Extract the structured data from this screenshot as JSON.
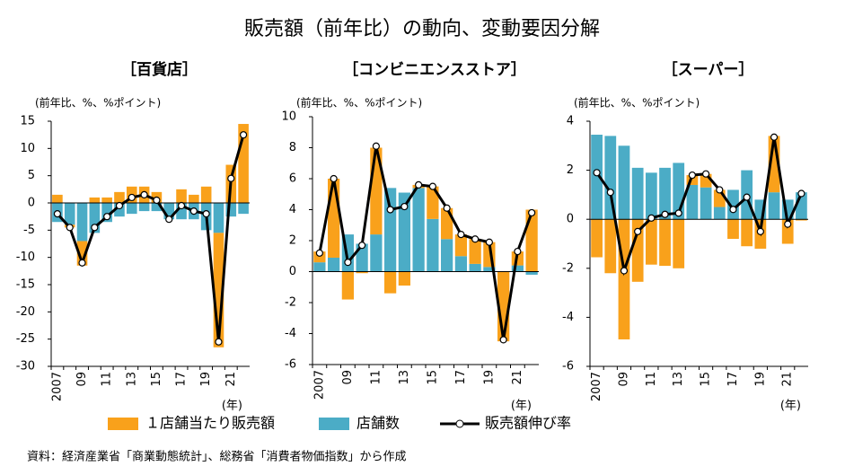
{
  "title": "販売額（前年比）の動向、変動要因分解",
  "source": "資料：経済産業省「商業動態統計」、総務省「消費者物価指数」から作成",
  "chart_data": [
    {
      "type": "combo",
      "title": "［百貨店］",
      "unit_label": "(前年比、%、%ポイント)",
      "x_unit": "(年)",
      "categories": [
        "2007",
        null,
        "09",
        null,
        "11",
        null,
        "13",
        null,
        "15",
        null,
        "17",
        null,
        "19",
        null,
        "21",
        null
      ],
      "ylim": [
        -30,
        15
      ],
      "yticks": [
        -30,
        -25,
        -20,
        -15,
        -10,
        -5,
        0,
        5,
        10,
        15
      ],
      "series": [
        {
          "name": "１店舗当たり販売額",
          "type": "bar",
          "color": "#f9a11b",
          "values": [
            1.5,
            -0.5,
            -4.5,
            1,
            1,
            2,
            3,
            3,
            2,
            0,
            2.5,
            1.5,
            3,
            -21,
            7,
            14.5
          ]
        },
        {
          "name": "店舗数",
          "type": "bar",
          "color": "#4bacc6",
          "values": [
            -3.5,
            -4,
            -7,
            -5.5,
            -3.5,
            -2.5,
            -2,
            -1.5,
            -1.5,
            -3,
            -3,
            -3,
            -5,
            -5.5,
            -2.5,
            -2
          ]
        },
        {
          "name": "販売額伸び率",
          "type": "line",
          "color": "#000000",
          "values": [
            -2,
            -4.5,
            -11,
            -4.5,
            -2.5,
            -0.5,
            1,
            1.5,
            0.5,
            -3,
            -0.5,
            -1.5,
            -2,
            -25.5,
            4.5,
            12.5
          ]
        }
      ]
    },
    {
      "type": "combo",
      "title": "［コンビニエンスストア］",
      "unit_label": "(前年比、%、%ポイント)",
      "x_unit": "(年)",
      "categories": [
        "2007",
        null,
        "09",
        null,
        "11",
        null,
        "13",
        null,
        "15",
        null,
        "17",
        null,
        "19",
        null,
        "21",
        null
      ],
      "ylim": [
        -6,
        10
      ],
      "yticks": [
        -6,
        -4,
        -2,
        0,
        2,
        4,
        6,
        8,
        10
      ],
      "series": [
        {
          "name": "１店舗当たり販売額",
          "type": "bar",
          "color": "#f9a11b",
          "values": [
            0.7,
            5.1,
            -1.8,
            -0.1,
            5.6,
            -1.4,
            -0.9,
            0.2,
            2.1,
            2.0,
            1.4,
            1.6,
            1.6,
            -4.5,
            0.9,
            4.0
          ]
        },
        {
          "name": "店舗数",
          "type": "bar",
          "color": "#4bacc6",
          "values": [
            0.6,
            0.9,
            2.4,
            1.8,
            2.4,
            5.4,
            5.1,
            5.4,
            3.4,
            2.1,
            1.0,
            0.5,
            0.3,
            0,
            0.4,
            -0.2
          ]
        },
        {
          "name": "販売額伸び率",
          "type": "line",
          "color": "#000000",
          "values": [
            1.2,
            6,
            0.6,
            1.7,
            8.1,
            4,
            4.2,
            5.6,
            5.5,
            4.1,
            2.4,
            2.1,
            1.9,
            -4.4,
            1.3,
            3.8
          ]
        }
      ]
    },
    {
      "type": "combo",
      "title": "［スーパー］",
      "unit_label": "(前年比、%、%ポイント)",
      "x_unit": "(年)",
      "categories": [
        "2007",
        null,
        "09",
        null,
        "11",
        null,
        "13",
        null,
        "15",
        null,
        "17",
        null,
        "19",
        null,
        "21",
        null
      ],
      "ylim": [
        -6,
        4
      ],
      "yticks": [
        -6,
        -4,
        -2,
        0,
        2,
        4
      ],
      "series": [
        {
          "name": "１店舗当たり販売額",
          "type": "bar",
          "color": "#f9a11b",
          "values": [
            -1.55,
            -2.2,
            -4.9,
            -2.55,
            -1.85,
            -1.9,
            -2.0,
            0.4,
            0.55,
            0.7,
            -0.8,
            -1.1,
            -1.2,
            2.3,
            -1.0,
            -0.05
          ]
        },
        {
          "name": "店舗数",
          "type": "bar",
          "color": "#4bacc6",
          "values": [
            3.45,
            3.4,
            3.0,
            2.1,
            1.9,
            2.1,
            2.3,
            1.4,
            1.3,
            0.5,
            1.2,
            2.0,
            0.8,
            1.1,
            0.8,
            1.1
          ]
        },
        {
          "name": "販売額伸び率",
          "type": "line",
          "color": "#000000",
          "values": [
            1.9,
            1.1,
            -2.1,
            -0.5,
            0.05,
            0.2,
            0.25,
            1.8,
            1.85,
            1.2,
            0.4,
            0.9,
            -0.5,
            3.35,
            -0.2,
            1.05
          ]
        }
      ]
    }
  ]
}
